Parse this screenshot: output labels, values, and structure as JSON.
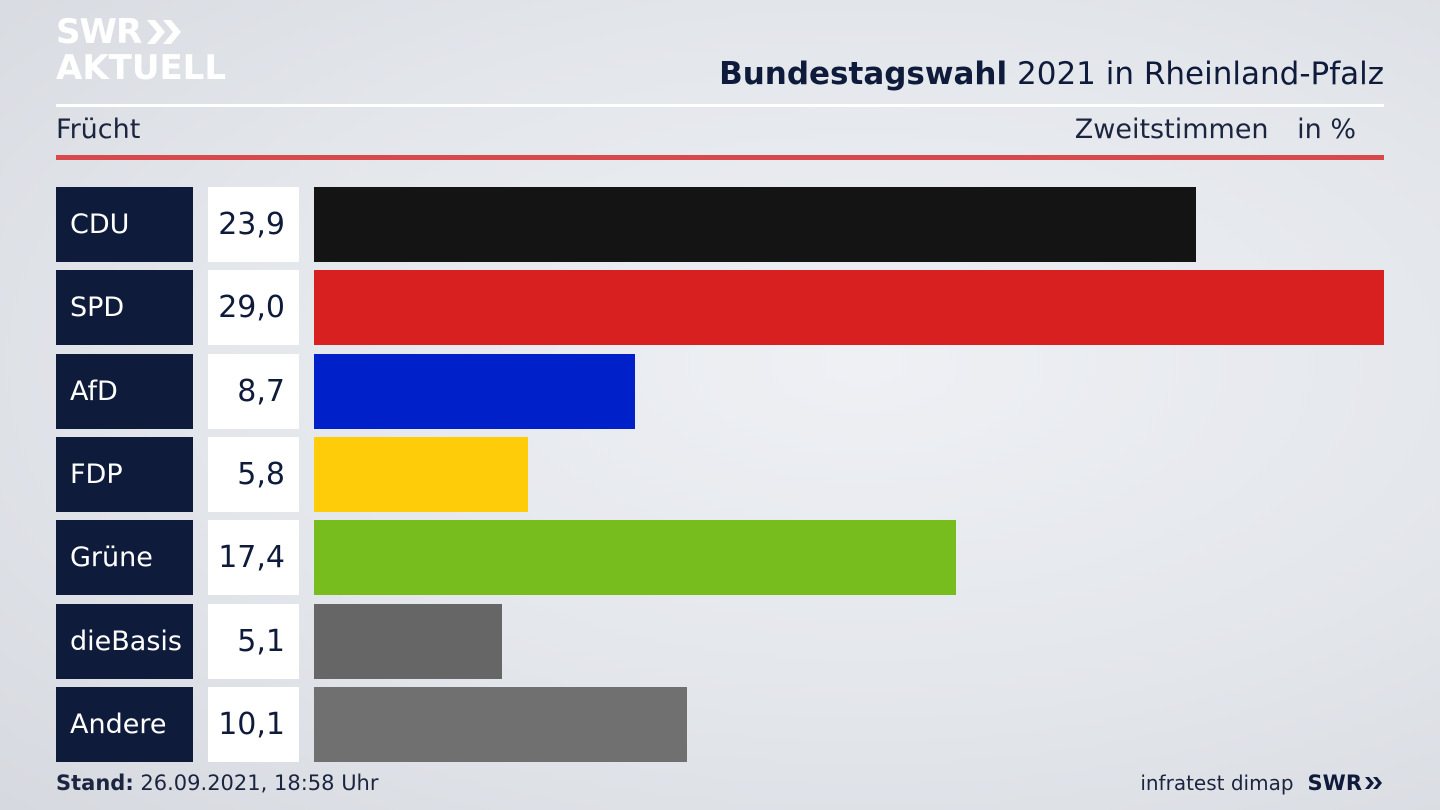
{
  "brand": {
    "logo_line1": "SWR",
    "logo_line2": "AKTUELL",
    "footer_logo": "SWR",
    "source": "infratest dimap",
    "chevron_icon": "double-chevron-icon"
  },
  "header": {
    "title_bold": "Bundestagswahl",
    "title_rest": "2021 in Rheinland-Pfalz",
    "subtitle_left": "Frücht",
    "subtitle_right_a": "Zweitstimmen",
    "subtitle_right_b": "in %"
  },
  "footer": {
    "stand_label": "Stand:",
    "stand_value": "26.09.2021, 18:58 Uhr"
  },
  "colors": {
    "navy": "#0f1b3a",
    "accent_red": "#d7494a"
  },
  "chart_data": {
    "type": "bar",
    "orientation": "horizontal",
    "categories": [
      "CDU",
      "SPD",
      "AfD",
      "FDP",
      "Grüne",
      "dieBasis",
      "Andere"
    ],
    "values": [
      23.9,
      29.0,
      8.7,
      5.8,
      17.4,
      5.1,
      10.1
    ],
    "value_labels": [
      "23,9",
      "29,0",
      "8,7",
      "5,8",
      "17,4",
      "5,1",
      "10,1"
    ],
    "bar_colors": [
      "#141414",
      "#d82020",
      "#0020c9",
      "#ffcc0a",
      "#78bd1e",
      "#666666",
      "#707070"
    ],
    "xlim": [
      0,
      29.0
    ],
    "grid": false,
    "legend": "none"
  }
}
